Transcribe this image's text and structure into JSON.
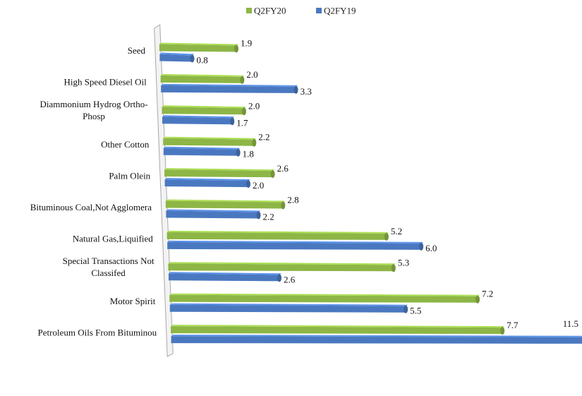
{
  "chart_data": {
    "type": "bar",
    "orientation": "horizontal",
    "style": "3d-perspective",
    "categories": [
      "Seed",
      "High Speed Diesel Oil",
      "Diammonium Hydrog Ortho-Phosp",
      "Other Cotton",
      "Palm Olein",
      "Bituminous Coal,Not Agglomera",
      "Natural Gas,Liquified",
      "Special Transactions Not Classifed",
      "Motor Spirit",
      "Petroleum Oils From Bituminou"
    ],
    "series": [
      {
        "name": "Q2FY20",
        "color": "#8DB646",
        "values": [
          1.9,
          2.0,
          2.0,
          2.2,
          2.6,
          2.8,
          5.2,
          5.3,
          7.2,
          7.7
        ]
      },
      {
        "name": "Q2FY19",
        "color": "#4A78C0",
        "values": [
          0.8,
          3.3,
          1.7,
          1.8,
          2.0,
          2.2,
          6.0,
          2.6,
          5.5,
          11.5
        ]
      }
    ],
    "value_labels": {
      "Q2FY20": [
        "1.9",
        "2.0",
        "2.0",
        "2.2",
        "2.6",
        "2.8",
        "5.2",
        "5.3",
        "7.2",
        "7.7"
      ],
      "Q2FY19": [
        "0.8",
        "3.3",
        "1.7",
        "1.8",
        "2.0",
        "2.2",
        "6.0",
        "2.6",
        "5.5",
        "11.5"
      ]
    },
    "legend": "top-center",
    "grid": false
  }
}
